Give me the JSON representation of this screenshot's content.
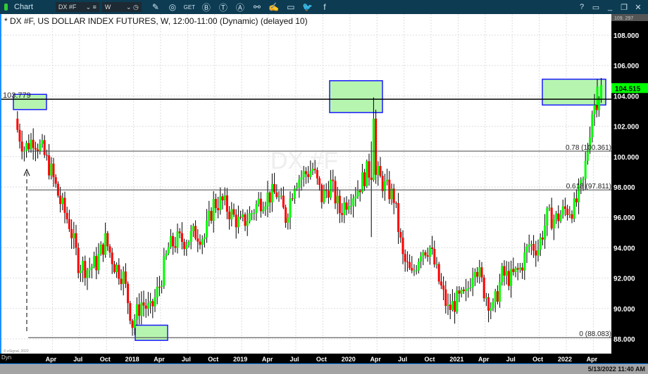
{
  "toolbar": {
    "app_label": "Chart",
    "symbol": "DX #F",
    "interval": "W",
    "icons": [
      "pencil-icon",
      "study-icon",
      "get-icon",
      "b-icon",
      "t-icon",
      "a-icon",
      "link-icon",
      "note-icon",
      "chat-icon",
      "twitter-icon",
      "facebook-icon"
    ],
    "window_icons": [
      "?",
      "▭",
      "_",
      "❐",
      "✕"
    ]
  },
  "chart_title": "* DX #F, US DOLLAR INDEX FUTURES, W, 12:00-11:00 (Dynamic) (delayed 10)",
  "watermark": "DX #F",
  "copyright": "© eSignal, 2022",
  "dyn_label": "Dyn",
  "status_time": "5/13/2022 11:40 AM",
  "colors": {
    "up": "#00ff00",
    "down": "#ff0000",
    "box_fill": "#b6f5b0",
    "box_border": "#1a1aff",
    "last_price_bg": "#00ff00"
  },
  "chart_data": {
    "type": "candlestick",
    "x_ticks": [
      "Apr",
      "Jul",
      "Oct",
      "2018",
      "Apr",
      "Jul",
      "Oct",
      "2019",
      "Apr",
      "Jul",
      "Oct",
      "2020",
      "Apr",
      "Jul",
      "Oct",
      "2021",
      "Apr",
      "Jul",
      "Oct",
      "2022",
      "Apr"
    ],
    "y_ticks": [
      "108.000",
      "106.000",
      "104.000",
      "102.000",
      "100.000",
      "98.000",
      "96.000",
      "94.000",
      "92.000",
      "90.000",
      "88.000"
    ],
    "ylim": [
      87.6,
      109.297
    ],
    "axis_top_label": "109. 297",
    "last_price": "104.515",
    "start_month": "2016-12",
    "monthly_close": [
      102.2,
      100.5,
      101.2,
      100.4,
      99.0,
      97.0,
      95.6,
      93.0,
      92.6,
      93.0,
      94.5,
      92.9,
      92.1,
      89.0,
      90.4,
      89.8,
      91.5,
      94.0,
      94.5,
      94.5,
      95.0,
      94.7,
      96.9,
      97.0,
      96.2,
      95.5,
      96.1,
      97.0,
      97.4,
      97.6,
      96.0,
      98.4,
      98.8,
      99.2,
      97.3,
      98.2,
      96.4,
      97.3,
      97.9,
      99.0,
      99.0,
      98.0,
      97.3,
      93.3,
      92.1,
      93.9,
      94.0,
      91.8,
      89.9,
      90.5,
      90.8,
      93.1,
      91.2,
      89.9,
      92.2,
      92.0,
      92.6,
      94.2,
      94.0,
      96.0,
      95.9,
      96.5,
      96.6,
      98.3,
      103.0,
      104.5
    ],
    "levels": [
      {
        "label": "103.779",
        "value": 103.779
      },
      {
        "label": "0.78 (100.361)",
        "value": 100.361
      },
      {
        "label": "0.618 (97.811)",
        "value": 97.811
      },
      {
        "label": "0 (88.083)",
        "value": 88.083
      }
    ]
  }
}
